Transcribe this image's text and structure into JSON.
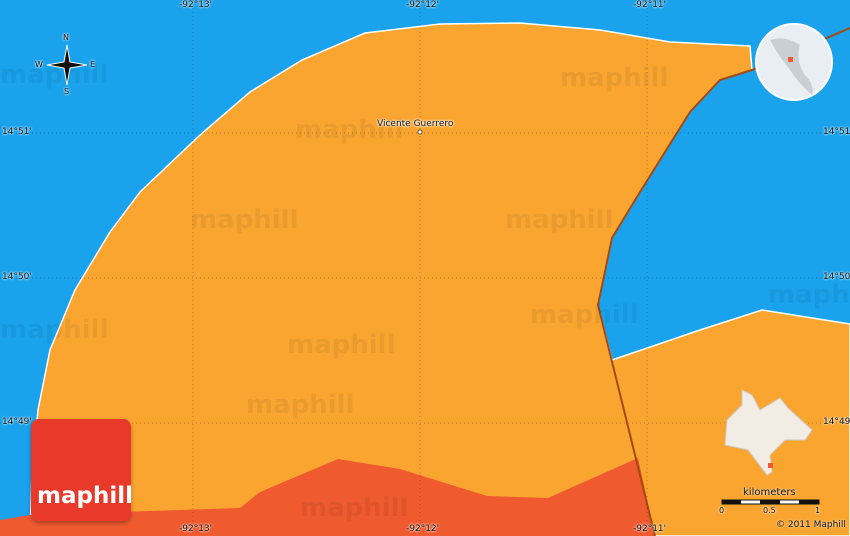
{
  "map": {
    "place_label": "Vicente Guerrero",
    "watermark": "maphill",
    "logo_text": "maphill",
    "copyright": "© 2011 Maphill",
    "compass": {
      "n": "N",
      "s": "S",
      "e": "E",
      "w": "W"
    },
    "longitude_labels": [
      "-92°13'",
      "-92°12'",
      "-92°11'"
    ],
    "latitude_labels": [
      "14°51'",
      "14°50'",
      "14°49'"
    ],
    "scale": {
      "unit": "kilometers",
      "ticks": [
        "0",
        "0.5",
        "1"
      ]
    },
    "colors": {
      "water": "#1aa3ec",
      "land": "#f9a530",
      "neighbor": "#ef5a2f",
      "border": "#a34a12",
      "logo": "#e8392a"
    }
  }
}
